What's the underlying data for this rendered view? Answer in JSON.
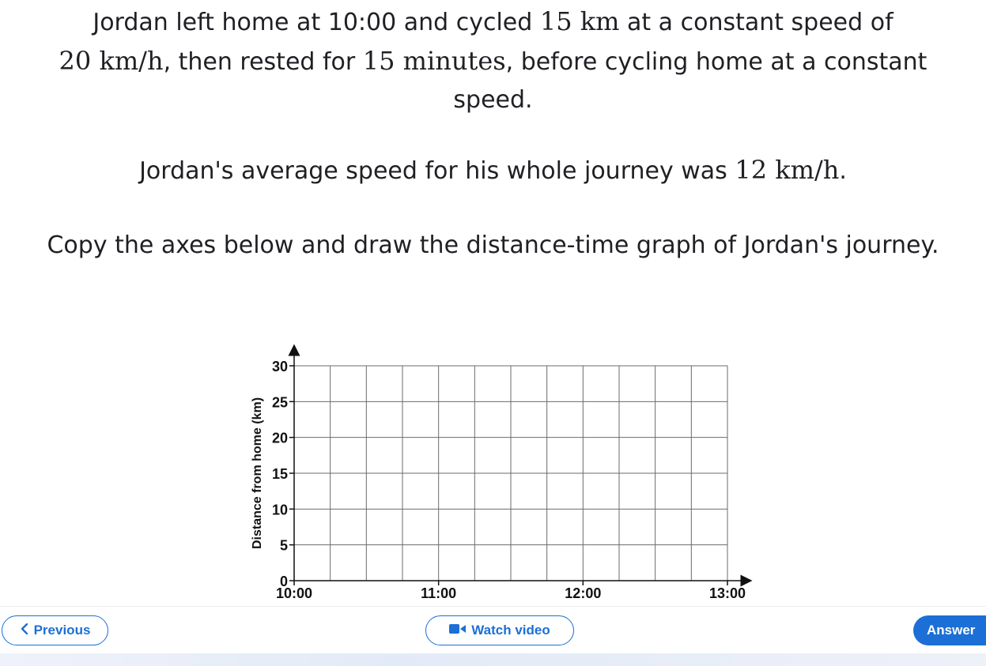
{
  "question": {
    "p1_a": "Jordan left home at 10:00 and cycled ",
    "p1_m1": "15 km",
    "p1_b": " at a constant speed of ",
    "p1_m2": "20 km/h",
    "p1_c": ", then rested for ",
    "p1_m3": "15 minutes",
    "p1_d": ", before cycling home at a constant speed.",
    "p2_a": "Jordan's average speed for his whole journey was ",
    "p2_m1": "12 km/h",
    "p2_b": ".",
    "p3": "Copy the axes below and draw the distance-time graph of Jordan's journey."
  },
  "chart_data": {
    "type": "line",
    "xlabel": "",
    "ylabel": "Distance from home (km)",
    "x_ticks": [
      "10:00",
      "11:00",
      "12:00",
      "13:00"
    ],
    "y_ticks": [
      "0",
      "5",
      "10",
      "15",
      "20",
      "25",
      "30"
    ],
    "xlim": [
      "10:00",
      "13:00"
    ],
    "ylim": [
      0,
      30
    ],
    "grid": true,
    "grid_x_interval_minutes": 15,
    "grid_y_interval": 5,
    "series": []
  },
  "footer": {
    "previous_label": "Previous",
    "watch_label": "Watch video",
    "answer_label": "Answer"
  },
  "colors": {
    "accent": "#1c6fd6",
    "text": "#1f2024",
    "grid": "#6b6b6b"
  },
  "icons": [
    "chevron-left-icon",
    "video-camera-icon"
  ]
}
